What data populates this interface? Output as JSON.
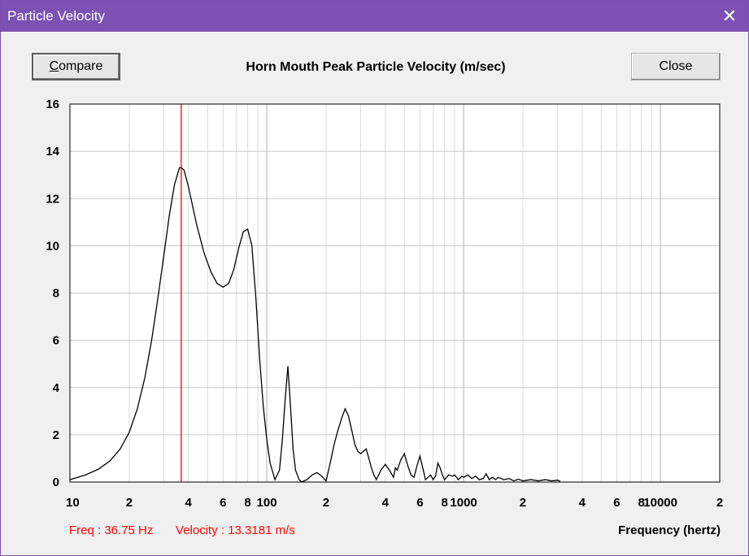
{
  "window": {
    "title": "Particle Velocity",
    "close_glyph": "✕"
  },
  "toolbar": {
    "compare_label_first": "C",
    "compare_label_rest": "ompare",
    "close_label": "Close"
  },
  "readouts": {
    "freq": "Freq : 36.75 Hz",
    "velocity": "Velocity : 13.3181 m/s"
  },
  "colors": {
    "titlebar": "#7b51b3",
    "cursor_line": "#ff0000",
    "curve": "#000000",
    "grid": "#c8c8c8"
  },
  "chart_data": {
    "type": "line",
    "title": "Horn Mouth Peak Particle Velocity (m/sec)",
    "xlabel": "Frequency (hertz)",
    "ylabel": "",
    "x_scale": "log",
    "xlim": [
      10,
      20000
    ],
    "ylim": [
      0,
      16
    ],
    "grid": true,
    "y_ticks": [
      0,
      2,
      4,
      6,
      8,
      10,
      12,
      14,
      16
    ],
    "y_tick_labels": [
      "0",
      "2",
      "4",
      "6",
      "8",
      "10",
      "12",
      "14",
      "16"
    ],
    "x_ticks": [
      10,
      20,
      40,
      60,
      80,
      100,
      200,
      400,
      600,
      800,
      1000,
      2000,
      4000,
      6000,
      8000,
      10000,
      20000
    ],
    "x_tick_labels": [
      "10",
      "2",
      "4",
      "6",
      "8",
      "100",
      "2",
      "4",
      "6",
      "8",
      "1000",
      "2",
      "4",
      "6",
      "8",
      "10000",
      "2"
    ],
    "cursor_x": 36.75,
    "series": [
      {
        "x": [
          10,
          12,
          14,
          16,
          18,
          20,
          22,
          24,
          26,
          28,
          30,
          32,
          34,
          36,
          36.75,
          38,
          40,
          44,
          48,
          52,
          56,
          60,
          64,
          68,
          72,
          76,
          80,
          84,
          88,
          92,
          96,
          100,
          104,
          110,
          116,
          120,
          124,
          128,
          132,
          136,
          140,
          146,
          150,
          160,
          170,
          180,
          190,
          200,
          210,
          220,
          230,
          240,
          250,
          260,
          270,
          280,
          290,
          300,
          320,
          330,
          340,
          350,
          360,
          380,
          400,
          420,
          440,
          450,
          460,
          480,
          500,
          520,
          540,
          560,
          580,
          600,
          620,
          640,
          660,
          680,
          700,
          720,
          740,
          760,
          780,
          800,
          840,
          880,
          900,
          940,
          980,
          1000,
          1050,
          1100,
          1150,
          1200,
          1260,
          1300,
          1350,
          1400,
          1450,
          1500,
          1600,
          1700,
          1800,
          1900,
          2000,
          2200,
          2400,
          2600,
          2800,
          3000,
          3100
        ],
        "y": [
          0.1,
          0.3,
          0.55,
          0.9,
          1.4,
          2.1,
          3.1,
          4.4,
          6.0,
          7.8,
          9.6,
          11.3,
          12.6,
          13.3,
          13.32,
          13.2,
          12.5,
          10.9,
          9.7,
          8.9,
          8.4,
          8.25,
          8.4,
          9.0,
          9.9,
          10.6,
          10.7,
          10.0,
          7.8,
          5.2,
          3.2,
          1.8,
          0.8,
          0.1,
          0.5,
          1.8,
          3.5,
          4.9,
          3.2,
          1.4,
          0.5,
          0.1,
          0.0,
          0.1,
          0.3,
          0.4,
          0.25,
          0.05,
          0.8,
          1.6,
          2.2,
          2.7,
          3.1,
          2.8,
          2.2,
          1.6,
          1.3,
          1.2,
          1.4,
          1.0,
          0.6,
          0.3,
          0.1,
          0.5,
          0.75,
          0.5,
          0.2,
          0.6,
          0.5,
          0.95,
          1.2,
          0.7,
          0.3,
          0.2,
          0.7,
          1.1,
          0.6,
          0.1,
          0.2,
          0.3,
          0.1,
          0.25,
          0.8,
          0.6,
          0.3,
          0.1,
          0.3,
          0.25,
          0.3,
          0.1,
          0.25,
          0.2,
          0.3,
          0.15,
          0.25,
          0.1,
          0.15,
          0.35,
          0.1,
          0.2,
          0.1,
          0.2,
          0.1,
          0.15,
          0.05,
          0.12,
          0.05,
          0.1,
          0.05,
          0.1,
          0.05,
          0.08,
          0.03
        ]
      }
    ]
  }
}
